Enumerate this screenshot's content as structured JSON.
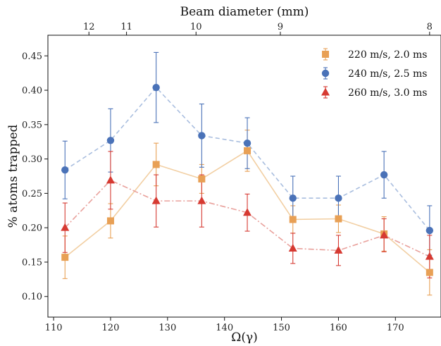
{
  "chart_data": {
    "type": "line",
    "xlabel": "Ω(γ)",
    "ylabel": "% atoms trapped",
    "top_xlabel": "Beam diameter (mm)",
    "xlim": [
      109,
      178
    ],
    "ylim": [
      0.07,
      0.48
    ],
    "x_ticks": [
      110,
      120,
      130,
      140,
      150,
      160,
      170
    ],
    "y_ticks": [
      0.1,
      0.15,
      0.2,
      0.25,
      0.3,
      0.35,
      0.4,
      0.45
    ],
    "top_ticks": [
      {
        "label": "12",
        "x": 116.2
      },
      {
        "label": "11",
        "x": 122.8
      },
      {
        "label": "10",
        "x": 135.0
      },
      {
        "label": "9",
        "x": 149.8
      },
      {
        "label": "8",
        "x": 176.0
      }
    ],
    "legend_position": "top-right",
    "x": [
      112,
      120,
      128,
      136,
      144,
      152,
      160,
      168,
      176
    ],
    "series": [
      {
        "name": "220 m/s, 2.0 ms",
        "color": "#e8a055",
        "line_color": "#f2cfa3",
        "marker": "square",
        "line_style": "solid",
        "values": [
          0.157,
          0.21,
          0.292,
          0.271,
          0.312,
          0.212,
          0.213,
          0.191,
          0.135
        ],
        "errors": [
          0.031,
          0.025,
          0.031,
          0.021,
          0.03,
          0.02,
          0.02,
          0.025,
          0.033
        ]
      },
      {
        "name": "240 m/s, 2.5 ms",
        "color": "#4a72b8",
        "line_color": "#a9bedf",
        "marker": "circle",
        "line_style": "dashed",
        "values": [
          0.284,
          0.327,
          0.404,
          0.334,
          0.323,
          0.243,
          0.243,
          0.277,
          0.196
        ],
        "errors": [
          0.042,
          0.046,
          0.051,
          0.046,
          0.037,
          0.032,
          0.032,
          0.034,
          0.036
        ]
      },
      {
        "name": "260 m/s, 3.0 ms",
        "color": "#d63a32",
        "line_color": "#e9a19c",
        "marker": "triangle",
        "line_style": "dashdot",
        "values": [
          0.2,
          0.269,
          0.239,
          0.239,
          0.222,
          0.17,
          0.167,
          0.189,
          0.158
        ],
        "errors": [
          0.036,
          0.042,
          0.038,
          0.038,
          0.027,
          0.022,
          0.022,
          0.024,
          0.031
        ]
      }
    ]
  }
}
